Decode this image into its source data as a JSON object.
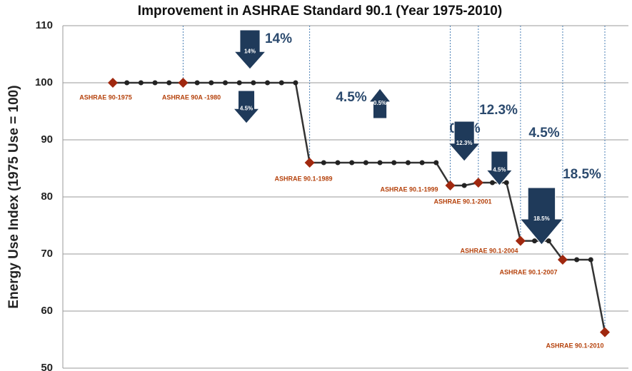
{
  "chart_data": {
    "type": "line",
    "title": "Improvement in ASHRAE Standard 90.1 (Year 1975-2010)",
    "y_label": "Energy Use Index (1975 Use = 100)",
    "categories": [
      null,
      null,
      null,
      null,
      null,
      null,
      null,
      null,
      null,
      null,
      null,
      null,
      null,
      null,
      null,
      null,
      null,
      null,
      null,
      null,
      null,
      null,
      null,
      null,
      null,
      null,
      null,
      null,
      null,
      null,
      null,
      null,
      null,
      null,
      null,
      null
    ],
    "series": [
      {
        "name": null,
        "color": "#333333",
        "values": [
          100,
          100,
          100,
          100,
          100,
          100,
          100,
          100,
          100,
          100,
          100,
          100,
          100,
          100,
          86,
          86,
          86,
          86,
          86,
          86,
          86,
          86,
          86,
          86,
          82,
          82,
          82.5,
          82.5,
          82.5,
          72.3,
          72.3,
          72.3,
          69,
          69,
          69,
          56.3
        ]
      }
    ],
    "markers": [
      {
        "index": 0,
        "label": "ASHRAE 90-1975"
      },
      {
        "index": 5,
        "label": "ASHRAE 90A -1980"
      },
      {
        "index": 14,
        "label": "ASHRAE 90.1-1989"
      },
      {
        "index": 24,
        "label": "ASHRAE 90.1-1999"
      },
      {
        "index": 26,
        "label": "ASHRAE 90.1-2001"
      },
      {
        "index": 29,
        "label": "ASHRAE 90.1-2004"
      },
      {
        "index": 32,
        "label": "ASHRAE 90.1-2007"
      },
      {
        "index": 35,
        "label": "ASHRAE 90.1-2010"
      }
    ],
    "marker_color": "#a0280f",
    "changes": [
      {
        "value": 14,
        "label": "14%",
        "direction": "down"
      },
      {
        "value": 4.5,
        "label": "4.5%",
        "direction": "down"
      },
      {
        "value": 0.5,
        "label": "0.5%",
        "direction": "up"
      },
      {
        "value": 12.3,
        "label": "12.3%",
        "direction": "down"
      },
      {
        "value": 4.5,
        "label": "4.5%",
        "direction": "down"
      },
      {
        "value": 18.5,
        "label": "18.5%",
        "direction": "down"
      }
    ],
    "arrow_color": "#1f3a5a",
    "ylim": [
      50,
      110
    ],
    "yticks": [
      50,
      60,
      70,
      80,
      90,
      100,
      110
    ],
    "grid": true
  }
}
